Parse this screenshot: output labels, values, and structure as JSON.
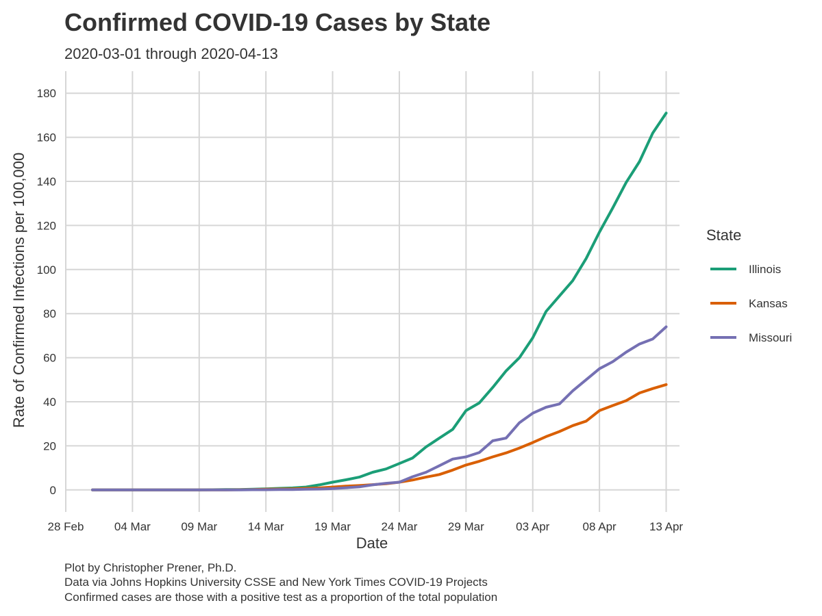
{
  "chart_data": {
    "type": "line",
    "title": "Confirmed COVID-19 Cases by State",
    "subtitle": "2020-03-01 through 2020-04-13",
    "xlabel": "Date",
    "ylabel": "Rate of Confirmed Infections per 100,000",
    "x_tick_labels": [
      "28 Feb",
      "04 Mar",
      "09 Mar",
      "14 Mar",
      "19 Mar",
      "24 Mar",
      "29 Mar",
      "03 Apr",
      "08 Apr",
      "13 Apr"
    ],
    "x_tick_dates": [
      "2020-02-28",
      "2020-03-04",
      "2020-03-09",
      "2020-03-14",
      "2020-03-19",
      "2020-03-24",
      "2020-03-29",
      "2020-04-03",
      "2020-04-08",
      "2020-04-13"
    ],
    "xlim": [
      "2020-02-28",
      "2020-04-14"
    ],
    "y_ticks": [
      0,
      20,
      40,
      60,
      80,
      100,
      120,
      140,
      160,
      180
    ],
    "ylim": [
      -10,
      190
    ],
    "grid": true,
    "legend": {
      "title": "State",
      "placement": "right"
    },
    "x": [
      "2020-03-01",
      "2020-03-02",
      "2020-03-03",
      "2020-03-04",
      "2020-03-05",
      "2020-03-06",
      "2020-03-07",
      "2020-03-08",
      "2020-03-09",
      "2020-03-10",
      "2020-03-11",
      "2020-03-12",
      "2020-03-13",
      "2020-03-14",
      "2020-03-15",
      "2020-03-16",
      "2020-03-17",
      "2020-03-18",
      "2020-03-19",
      "2020-03-20",
      "2020-03-21",
      "2020-03-22",
      "2020-03-23",
      "2020-03-24",
      "2020-03-25",
      "2020-03-26",
      "2020-03-27",
      "2020-03-28",
      "2020-03-29",
      "2020-03-30",
      "2020-03-31",
      "2020-04-01",
      "2020-04-02",
      "2020-04-03",
      "2020-04-04",
      "2020-04-05",
      "2020-04-06",
      "2020-04-07",
      "2020-04-08",
      "2020-04-09",
      "2020-04-10",
      "2020-04-11",
      "2020-04-12",
      "2020-04-13"
    ],
    "series": [
      {
        "name": "Illinois",
        "color": "#1b9e77",
        "values": [
          0,
          0,
          0,
          0,
          0,
          0,
          0,
          0,
          0,
          0.1,
          0.2,
          0.2,
          0.3,
          0.5,
          0.7,
          0.9,
          1.3,
          2.3,
          3.5,
          4.6,
          5.8,
          8.0,
          9.5,
          12.0,
          14.5,
          19.5,
          23.5,
          27.5,
          36.0,
          39.5,
          46.5,
          54.0,
          60.0,
          69.0,
          81.0,
          88.0,
          95.0,
          105.0,
          117.0,
          128.0,
          139.5,
          149.0,
          162.0,
          171.0
        ]
      },
      {
        "name": "Kansas",
        "color": "#d95f02",
        "values": [
          0,
          0,
          0,
          0,
          0,
          0,
          0,
          0,
          0,
          0,
          0,
          0.1,
          0.2,
          0.3,
          0.4,
          0.5,
          0.7,
          0.9,
          1.3,
          1.7,
          2.0,
          2.4,
          2.8,
          3.5,
          4.5,
          5.8,
          7.0,
          9.0,
          11.3,
          13.0,
          15.0,
          16.8,
          19.0,
          21.5,
          24.2,
          26.5,
          29.2,
          31.2,
          36.0,
          38.3,
          40.5,
          44.0,
          46.0,
          47.8
        ]
      },
      {
        "name": "Missouri",
        "color": "#7570b3",
        "values": [
          0,
          0,
          0,
          0,
          0,
          0,
          0,
          0,
          0,
          0,
          0,
          0,
          0.1,
          0.1,
          0.2,
          0.2,
          0.3,
          0.4,
          0.6,
          1.0,
          1.4,
          2.3,
          3.0,
          3.5,
          6.0,
          8.0,
          11.0,
          14.0,
          15.0,
          17.0,
          22.3,
          23.5,
          30.5,
          34.8,
          37.5,
          39.0,
          45.0,
          50.0,
          55.0,
          58.2,
          62.5,
          66.2,
          68.5,
          74.0
        ]
      }
    ],
    "caption": [
      "Plot by Christopher Prener, Ph.D.",
      "Data via Johns Hopkins University CSSE and New York Times COVID-19 Projects",
      "Confirmed cases are those with a positive test as a proportion of the total population"
    ]
  }
}
